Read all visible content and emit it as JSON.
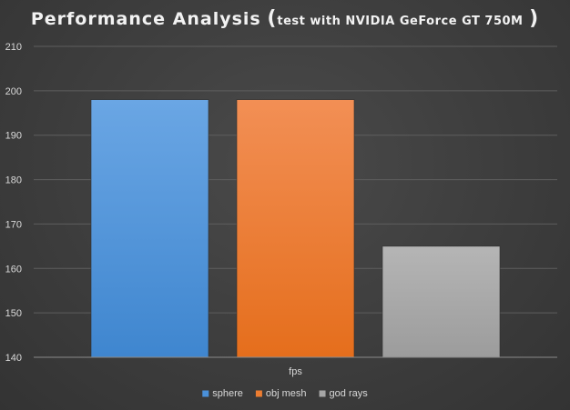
{
  "chart_data": {
    "type": "bar",
    "title": {
      "main": "Performance Analysis",
      "paren_open": "(",
      "sub": "test with NVIDIA GeForce GT 750M",
      "paren_close": ")"
    },
    "categories": [
      "fps"
    ],
    "series": [
      {
        "name": "sphere",
        "values": [
          198
        ],
        "color": "#4a90d9"
      },
      {
        "name": "obj mesh",
        "values": [
          198
        ],
        "color": "#ed7d31"
      },
      {
        "name": "god rays",
        "values": [
          165
        ],
        "color": "#a5a5a5"
      }
    ],
    "ylim": [
      140,
      210
    ],
    "yticks": [
      "140",
      "150",
      "160",
      "170",
      "180",
      "190",
      "200",
      "210"
    ],
    "grid": true,
    "legend": "bottom",
    "xlabel": "",
    "ylabel": ""
  }
}
